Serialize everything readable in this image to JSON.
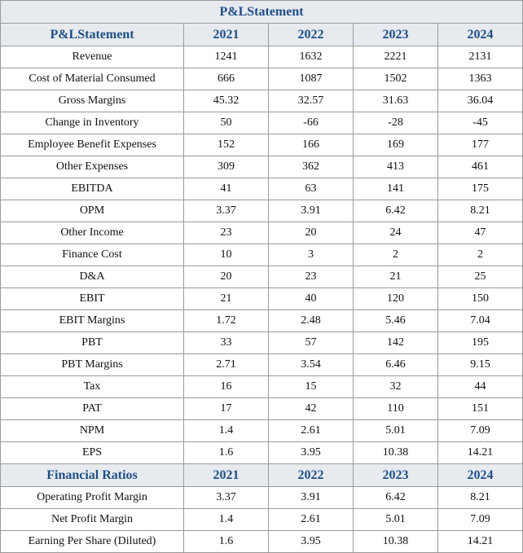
{
  "title": "P&LStatement",
  "sections": [
    {
      "header": "P&LStatement",
      "years": [
        "2021",
        "2022",
        "2023",
        "2024"
      ],
      "rows": [
        {
          "label": "Revenue",
          "values": [
            "1241",
            "1632",
            "2221",
            "2131"
          ]
        },
        {
          "label": "Cost of Material Consumed",
          "values": [
            "666",
            "1087",
            "1502",
            "1363"
          ]
        },
        {
          "label": "Gross Margins",
          "values": [
            "45.32",
            "32.57",
            "31.63",
            "36.04"
          ]
        },
        {
          "label": "Change in Inventory",
          "values": [
            "50",
            "-66",
            "-28",
            "-45"
          ]
        },
        {
          "label": "Employee Benefit Expenses",
          "values": [
            "152",
            "166",
            "169",
            "177"
          ]
        },
        {
          "label": "Other Expenses",
          "values": [
            "309",
            "362",
            "413",
            "461"
          ]
        },
        {
          "label": "EBITDA",
          "values": [
            "41",
            "63",
            "141",
            "175"
          ]
        },
        {
          "label": "OPM",
          "values": [
            "3.37",
            "3.91",
            "6.42",
            "8.21"
          ]
        },
        {
          "label": "Other Income",
          "values": [
            "23",
            "20",
            "24",
            "47"
          ]
        },
        {
          "label": "Finance Cost",
          "values": [
            "10",
            "3",
            "2",
            "2"
          ]
        },
        {
          "label": "D&A",
          "values": [
            "20",
            "23",
            "21",
            "25"
          ]
        },
        {
          "label": "EBIT",
          "values": [
            "21",
            "40",
            "120",
            "150"
          ]
        },
        {
          "label": "EBIT Margins",
          "values": [
            "1.72",
            "2.48",
            "5.46",
            "7.04"
          ]
        },
        {
          "label": "PBT",
          "values": [
            "33",
            "57",
            "142",
            "195"
          ]
        },
        {
          "label": "PBT Margins",
          "values": [
            "2.71",
            "3.54",
            "6.46",
            "9.15"
          ]
        },
        {
          "label": "Tax",
          "values": [
            "16",
            "15",
            "32",
            "44"
          ]
        },
        {
          "label": "PAT",
          "values": [
            "17",
            "42",
            "110",
            "151"
          ]
        },
        {
          "label": "NPM",
          "values": [
            "1.4",
            "2.61",
            "5.01",
            "7.09"
          ]
        },
        {
          "label": "EPS",
          "values": [
            "1.6",
            "3.95",
            "10.38",
            "14.21"
          ]
        }
      ]
    },
    {
      "header": "Financial Ratios",
      "years": [
        "2021",
        "2022",
        "2023",
        "2024"
      ],
      "rows": [
        {
          "label": "Operating Profit Margin",
          "values": [
            "3.37",
            "3.91",
            "6.42",
            "8.21"
          ]
        },
        {
          "label": "Net Profit Margin",
          "values": [
            "1.4",
            "2.61",
            "5.01",
            "7.09"
          ]
        },
        {
          "label": "Earning Per Share (Diluted)",
          "values": [
            "1.6",
            "3.95",
            "10.38",
            "14.21"
          ]
        }
      ]
    }
  ],
  "colors": {
    "header_background": "#e7eaef",
    "header_text": "#1f4e86",
    "border": "#9a9a9a",
    "body_text": "#111111"
  }
}
